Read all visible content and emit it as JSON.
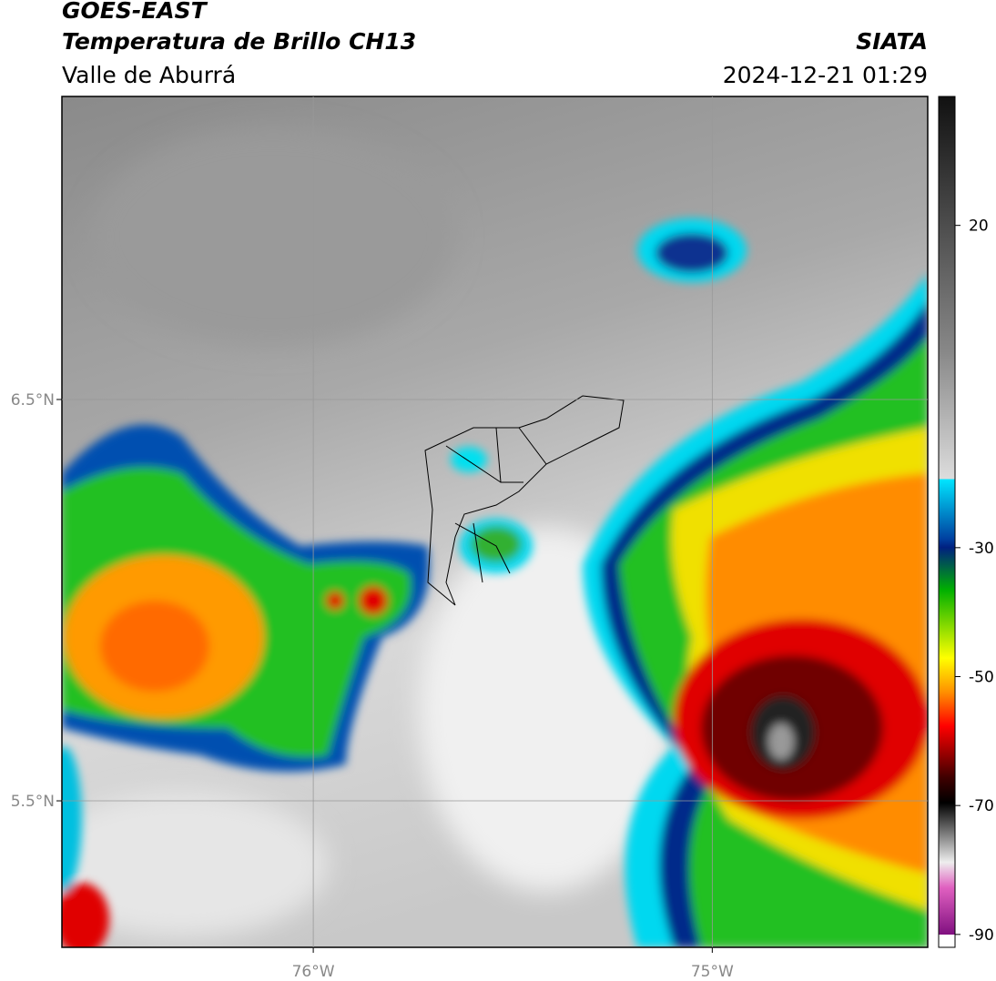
{
  "header": {
    "title": "GOES-EAST",
    "subtitle": "Temperatura de Brillo CH13",
    "region": "Valle de Aburrá",
    "source": "SIATA",
    "datetime": "2024-12-21 01:29"
  },
  "map": {
    "lonlim": [
      -76.63,
      -74.46
    ],
    "latlim": [
      5.135,
      7.255
    ],
    "lat_ticks": [
      {
        "value": 6.5,
        "label": "6.5°N"
      },
      {
        "value": 5.5,
        "label": "5.5°N"
      }
    ],
    "lon_ticks": [
      {
        "value": -76,
        "label": "76°W"
      },
      {
        "value": -75,
        "label": "75°W"
      }
    ]
  },
  "colorbar": {
    "lim": [
      -92,
      40
    ],
    "ticks": [
      20,
      -30,
      -50,
      -70,
      -90
    ]
  }
}
